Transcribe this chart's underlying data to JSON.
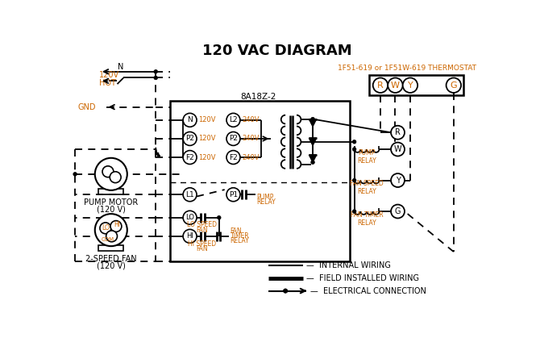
{
  "title": "120 VAC DIAGRAM",
  "bg_color": "#ffffff",
  "line_color": "#000000",
  "orange_color": "#cc6600",
  "thermostat_label": "1F51-619 or 1F51W-619 THERMOSTAT",
  "control_box_label": "8A18Z-2",
  "left_terms_col1": [
    [
      "N",
      "120V"
    ],
    [
      "P2",
      "120V"
    ],
    [
      "F2",
      "120V"
    ]
  ],
  "left_terms_col2": [
    [
      "L2",
      "240V"
    ],
    [
      "P2",
      "240V"
    ],
    [
      "F2",
      "240V"
    ]
  ],
  "relay_labels": [
    "R",
    "W",
    "Y",
    "G"
  ],
  "pump_motor_label": "PUMP MOTOR\n(120 V)",
  "fan_label": "2-SPEED FAN\n(120 V)",
  "legend": [
    "INTERNAL WIRING",
    "FIELD INSTALLED WIRING",
    "ELECTRICAL CONNECTION"
  ]
}
